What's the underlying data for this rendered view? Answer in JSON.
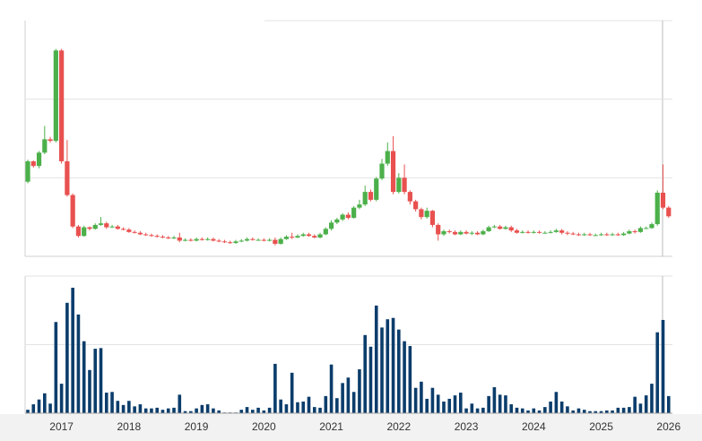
{
  "chart_data": [
    {
      "type": "candlestick",
      "up_color": "#4cb04a",
      "down_color": "#e8514f",
      "ylim": [
        0,
        300
      ],
      "yticks": [
        100,
        200
      ],
      "grid": true,
      "open": [
        95,
        121,
        115,
        132,
        149,
        147,
        262,
        121,
        78,
        38,
        26,
        37,
        35,
        40,
        42,
        37,
        38,
        35,
        34,
        31,
        30,
        28,
        27,
        26,
        25,
        24,
        23,
        24,
        20,
        21,
        20,
        22,
        21,
        22,
        20,
        19,
        18,
        17,
        19,
        20,
        22,
        21,
        21,
        20,
        21,
        16,
        22,
        25,
        24,
        26,
        28,
        26,
        24,
        28,
        35,
        43,
        47,
        53,
        49,
        62,
        66,
        82,
        72,
        99,
        118,
        134,
        82,
        100,
        82,
        70,
        60,
        50,
        58,
        40,
        28,
        32,
        31,
        28,
        31,
        29,
        30,
        28,
        32,
        37,
        38,
        35,
        37,
        33,
        30,
        31,
        30,
        31,
        30,
        30,
        31,
        33,
        30,
        29,
        28,
        27,
        28,
        27,
        27,
        28,
        27,
        28,
        27,
        29,
        32,
        31,
        36,
        36,
        41,
        81,
        62
      ],
      "high": [
        123,
        122,
        134,
        166,
        152,
        264,
        264,
        148,
        80,
        40,
        39,
        38,
        42,
        50,
        44,
        40,
        40,
        37,
        36,
        33,
        32,
        30,
        29,
        28,
        27,
        26,
        26,
        30,
        23,
        23,
        24,
        24,
        24,
        24,
        22,
        21,
        20,
        21,
        22,
        24,
        24,
        23,
        23,
        23,
        24,
        24,
        27,
        30,
        28,
        30,
        30,
        28,
        30,
        37,
        46,
        49,
        55,
        56,
        64,
        72,
        90,
        85,
        101,
        124,
        145,
        153,
        106,
        117,
        84,
        72,
        62,
        62,
        59,
        42,
        34,
        34,
        33,
        33,
        33,
        32,
        32,
        34,
        39,
        40,
        40,
        39,
        39,
        35,
        33,
        33,
        33,
        33,
        32,
        33,
        35,
        35,
        32,
        31,
        30,
        30,
        30,
        29,
        30,
        30,
        30,
        30,
        31,
        34,
        34,
        38,
        38,
        43,
        84,
        117,
        64
      ],
      "low": [
        93,
        113,
        112,
        130,
        145,
        145,
        118,
        76,
        36,
        24,
        25,
        33,
        34,
        39,
        35,
        36,
        34,
        33,
        30,
        29,
        27,
        26,
        25,
        24,
        23,
        22,
        22,
        18,
        19,
        19,
        19,
        20,
        20,
        19,
        18,
        17,
        16,
        16,
        18,
        19,
        20,
        20,
        19,
        19,
        14,
        15,
        21,
        22,
        23,
        25,
        25,
        23,
        23,
        27,
        33,
        41,
        45,
        47,
        48,
        60,
        64,
        70,
        70,
        97,
        115,
        79,
        80,
        79,
        66,
        57,
        47,
        48,
        37,
        20,
        26,
        29,
        27,
        27,
        28,
        27,
        27,
        27,
        31,
        36,
        34,
        34,
        31,
        29,
        29,
        29,
        29,
        29,
        29,
        29,
        30,
        28,
        27,
        27,
        26,
        26,
        26,
        26,
        26,
        26,
        26,
        26,
        26,
        28,
        29,
        30,
        35,
        35,
        39,
        60,
        49
      ],
      "close": [
        121,
        115,
        132,
        149,
        147,
        262,
        121,
        78,
        38,
        26,
        37,
        35,
        40,
        42,
        37,
        38,
        35,
        34,
        31,
        30,
        28,
        27,
        26,
        25,
        24,
        23,
        24,
        20,
        21,
        20,
        22,
        21,
        22,
        20,
        19,
        18,
        17,
        19,
        20,
        22,
        21,
        21,
        20,
        21,
        16,
        22,
        25,
        24,
        26,
        28,
        26,
        24,
        28,
        35,
        43,
        47,
        53,
        49,
        62,
        66,
        82,
        72,
        99,
        118,
        134,
        82,
        100,
        82,
        70,
        60,
        50,
        58,
        40,
        28,
        32,
        31,
        28,
        31,
        29,
        30,
        28,
        32,
        37,
        38,
        35,
        37,
        33,
        30,
        31,
        30,
        31,
        30,
        30,
        31,
        33,
        30,
        29,
        28,
        27,
        28,
        27,
        27,
        28,
        27,
        28,
        27,
        29,
        32,
        31,
        36,
        36,
        41,
        81,
        62,
        51
      ]
    },
    {
      "type": "bar",
      "color": "#0b3d6b",
      "ylim": [
        0,
        200
      ],
      "yticks": [
        100
      ],
      "grid": true,
      "categories": [
        null,
        null,
        null,
        null,
        null,
        null,
        "2017",
        null,
        null,
        null,
        null,
        null,
        null,
        null,
        null,
        null,
        null,
        null,
        "2018",
        null,
        null,
        null,
        null,
        null,
        null,
        null,
        null,
        null,
        null,
        null,
        "2019",
        null,
        null,
        null,
        null,
        null,
        null,
        null,
        null,
        null,
        null,
        null,
        "2020",
        null,
        null,
        null,
        null,
        null,
        null,
        null,
        null,
        null,
        null,
        null,
        "2021",
        null,
        null,
        null,
        null,
        null,
        null,
        null,
        null,
        null,
        null,
        null,
        "2022",
        null,
        null,
        null,
        null,
        null,
        null,
        null,
        null,
        null,
        null,
        null,
        "2023",
        null,
        null,
        null,
        null,
        null,
        null,
        null,
        null,
        null,
        null,
        null,
        "2024",
        null,
        null,
        null,
        null,
        null,
        null,
        null,
        null,
        null,
        null,
        null,
        "2025",
        null,
        null,
        null,
        null,
        null,
        null,
        null,
        null,
        null,
        null,
        null,
        "2026"
      ],
      "values": [
        5,
        13,
        20,
        29,
        14,
        133,
        43,
        161,
        183,
        144,
        105,
        63,
        94,
        95,
        30,
        31,
        18,
        12,
        18,
        10,
        13,
        7,
        7,
        8,
        5,
        7,
        8,
        27,
        3,
        3,
        7,
        12,
        13,
        7,
        4,
        1,
        1,
        1,
        5,
        9,
        5,
        8,
        4,
        8,
        72,
        20,
        13,
        59,
        16,
        17,
        24,
        9,
        8,
        25,
        71,
        22,
        44,
        52,
        31,
        64,
        114,
        97,
        157,
        125,
        137,
        139,
        122,
        105,
        98,
        37,
        46,
        21,
        37,
        27,
        17,
        21,
        26,
        30,
        7,
        14,
        7,
        8,
        25,
        38,
        27,
        26,
        13,
        8,
        7,
        4,
        7,
        4,
        9,
        17,
        31,
        17,
        10,
        4,
        7,
        5,
        3,
        3,
        3,
        4,
        4,
        8,
        8,
        9,
        24,
        14,
        26,
        43,
        118,
        136,
        25
      ]
    }
  ]
}
